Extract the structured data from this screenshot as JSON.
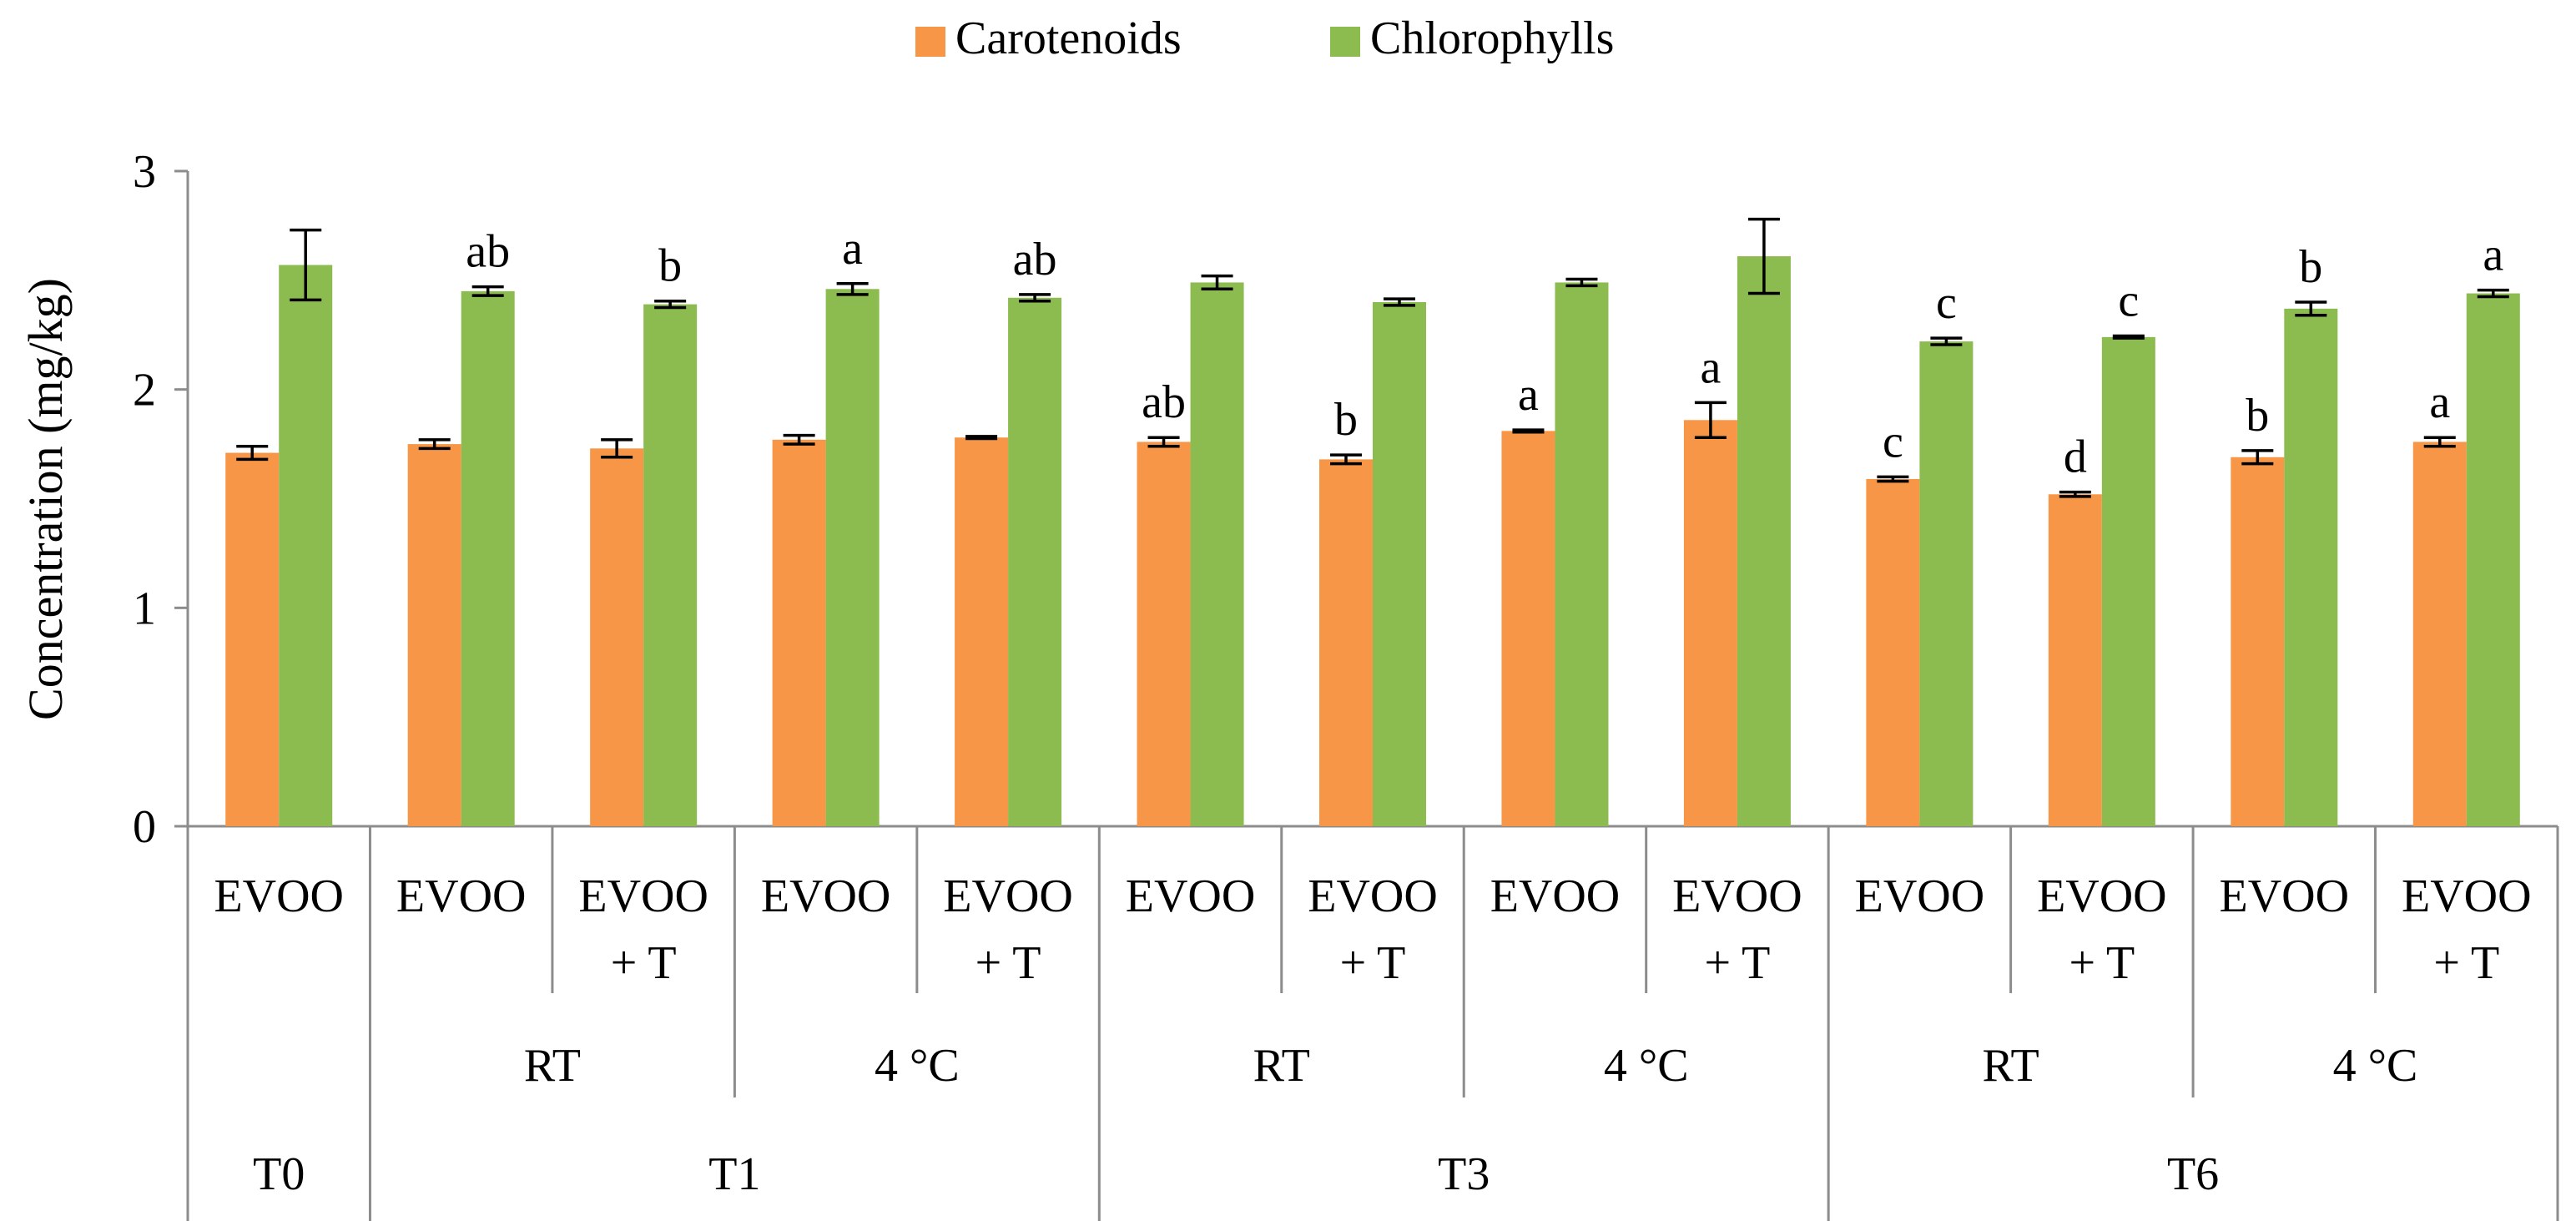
{
  "chart_data": {
    "type": "bar",
    "title": "",
    "ylabel": "Concentration (mg/kg)",
    "xlabel": "",
    "ylim": [
      0,
      3
    ],
    "yticks": [
      "0",
      "1",
      "2",
      "3"
    ],
    "grid": false,
    "legend_position": "top-center",
    "categories": [
      {
        "sample": [
          "EVOO"
        ],
        "condition": "",
        "time": "T0"
      },
      {
        "sample": [
          "EVOO"
        ],
        "condition": "RT",
        "time": "T1"
      },
      {
        "sample": [
          "EVOO",
          "+ T"
        ],
        "condition": "RT",
        "time": "T1"
      },
      {
        "sample": [
          "EVOO"
        ],
        "condition": "4 °C",
        "time": "T1"
      },
      {
        "sample": [
          "EVOO",
          "+ T"
        ],
        "condition": "4 °C",
        "time": "T1"
      },
      {
        "sample": [
          "EVOO"
        ],
        "condition": "RT",
        "time": "T3"
      },
      {
        "sample": [
          "EVOO",
          "+ T"
        ],
        "condition": "RT",
        "time": "T3"
      },
      {
        "sample": [
          "EVOO"
        ],
        "condition": "4 °C",
        "time": "T3"
      },
      {
        "sample": [
          "EVOO",
          "+ T"
        ],
        "condition": "4 °C",
        "time": "T3"
      },
      {
        "sample": [
          "EVOO"
        ],
        "condition": "RT",
        "time": "T6"
      },
      {
        "sample": [
          "EVOO",
          "+ T"
        ],
        "condition": "RT",
        "time": "T6"
      },
      {
        "sample": [
          "EVOO"
        ],
        "condition": "4 °C",
        "time": "T6"
      },
      {
        "sample": [
          "EVOO",
          "+ T"
        ],
        "condition": "4 °C",
        "time": "T6"
      }
    ],
    "condition_groups": [
      {
        "label": "RT",
        "start": 1,
        "end": 2
      },
      {
        "label": "4 °C",
        "start": 3,
        "end": 4
      },
      {
        "label": "RT",
        "start": 5,
        "end": 6
      },
      {
        "label": "4 °C",
        "start": 7,
        "end": 8
      },
      {
        "label": "RT",
        "start": 9,
        "end": 10
      },
      {
        "label": "4 °C",
        "start": 11,
        "end": 12
      }
    ],
    "time_groups": [
      {
        "label": "T0",
        "start": 0,
        "end": 0
      },
      {
        "label": "T1",
        "start": 1,
        "end": 4
      },
      {
        "label": "T3",
        "start": 5,
        "end": 8
      },
      {
        "label": "T6",
        "start": 9,
        "end": 12
      }
    ],
    "series": [
      {
        "name": "Carotenoids",
        "color": "#F79646",
        "values": [
          1.71,
          1.75,
          1.73,
          1.77,
          1.78,
          1.76,
          1.68,
          1.81,
          1.86,
          1.59,
          1.52,
          1.69,
          1.76
        ],
        "errors": [
          0.03,
          0.02,
          0.04,
          0.02,
          0.005,
          0.02,
          0.02,
          0.005,
          0.08,
          0.01,
          0.01,
          0.03,
          0.02
        ],
        "labels": [
          "",
          "",
          "",
          "",
          "",
          "ab",
          "b",
          "a",
          "a",
          "c",
          "d",
          "b",
          "a"
        ]
      },
      {
        "name": "Chlorophylls",
        "color": "#8CBB4F",
        "values": [
          2.57,
          2.45,
          2.39,
          2.46,
          2.42,
          2.49,
          2.4,
          2.49,
          2.61,
          2.22,
          2.24,
          2.37,
          2.44
        ],
        "errors": [
          0.16,
          0.02,
          0.015,
          0.025,
          0.015,
          0.03,
          0.015,
          0.015,
          0.17,
          0.015,
          0.005,
          0.03,
          0.015
        ],
        "labels": [
          "",
          "ab",
          "b",
          "a",
          "ab",
          "",
          "",
          "",
          "",
          "c",
          "c",
          "b",
          "a"
        ]
      }
    ]
  }
}
